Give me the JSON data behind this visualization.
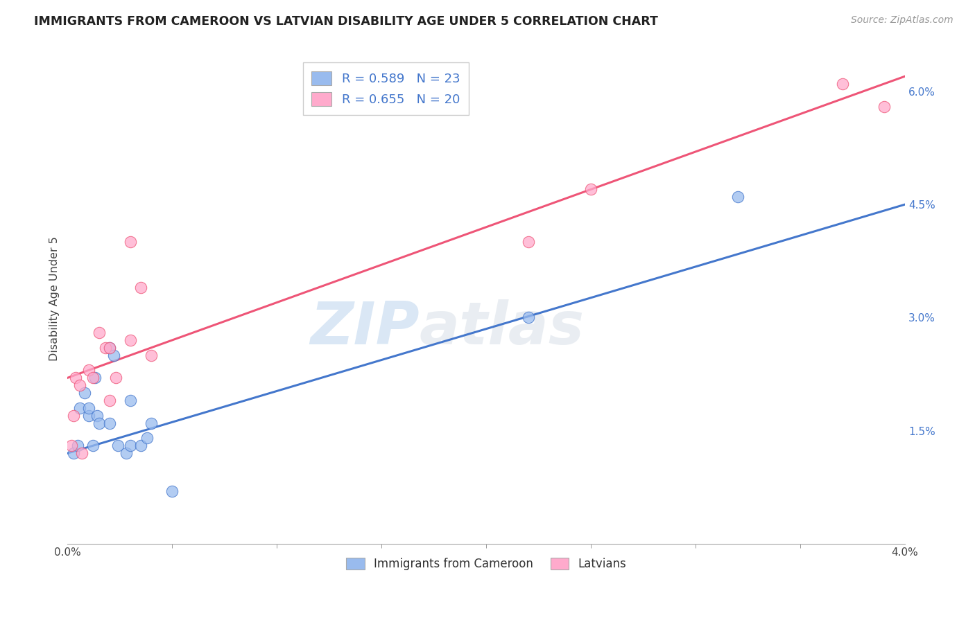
{
  "title": "IMMIGRANTS FROM CAMEROON VS LATVIAN DISABILITY AGE UNDER 5 CORRELATION CHART",
  "source": "Source: ZipAtlas.com",
  "ylabel": "Disability Age Under 5",
  "xlim": [
    0.0,
    0.04
  ],
  "ylim": [
    0.0,
    0.065
  ],
  "xtick_positions": [
    0.0,
    0.04
  ],
  "xtick_labels": [
    "0.0%",
    "4.0%"
  ],
  "yticks_right": [
    0.015,
    0.03,
    0.045,
    0.06
  ],
  "ytick_labels_right": [
    "1.5%",
    "3.0%",
    "4.5%",
    "6.0%"
  ],
  "legend_label1": "R = 0.589   N = 23",
  "legend_label2": "R = 0.655   N = 20",
  "legend_bottom1": "Immigrants from Cameroon",
  "legend_bottom2": "Latvians",
  "color_blue": "#99BBEE",
  "color_pink": "#FFAACC",
  "line_blue": "#4477CC",
  "line_pink": "#EE5577",
  "watermark_zip": "ZIP",
  "watermark_atlas": "atlas",
  "blue_x": [
    0.0003,
    0.0005,
    0.0006,
    0.0008,
    0.001,
    0.001,
    0.0012,
    0.0013,
    0.0014,
    0.0015,
    0.002,
    0.002,
    0.0022,
    0.0024,
    0.0028,
    0.003,
    0.003,
    0.0035,
    0.0038,
    0.004,
    0.005,
    0.022,
    0.032
  ],
  "blue_y": [
    0.012,
    0.013,
    0.018,
    0.02,
    0.017,
    0.018,
    0.013,
    0.022,
    0.017,
    0.016,
    0.016,
    0.026,
    0.025,
    0.013,
    0.012,
    0.013,
    0.019,
    0.013,
    0.014,
    0.016,
    0.007,
    0.03,
    0.046
  ],
  "pink_x": [
    0.0002,
    0.0003,
    0.0004,
    0.0006,
    0.0007,
    0.001,
    0.0012,
    0.0015,
    0.0018,
    0.002,
    0.002,
    0.0023,
    0.003,
    0.003,
    0.0035,
    0.004,
    0.022,
    0.025,
    0.037,
    0.039
  ],
  "pink_y": [
    0.013,
    0.017,
    0.022,
    0.021,
    0.012,
    0.023,
    0.022,
    0.028,
    0.026,
    0.019,
    0.026,
    0.022,
    0.04,
    0.027,
    0.034,
    0.025,
    0.04,
    0.047,
    0.061,
    0.058
  ],
  "blue_line_x0": 0.0,
  "blue_line_x1": 0.04,
  "blue_line_y0": 0.012,
  "blue_line_y1": 0.045,
  "pink_line_x0": 0.0,
  "pink_line_x1": 0.04,
  "pink_line_y0": 0.022,
  "pink_line_y1": 0.062
}
